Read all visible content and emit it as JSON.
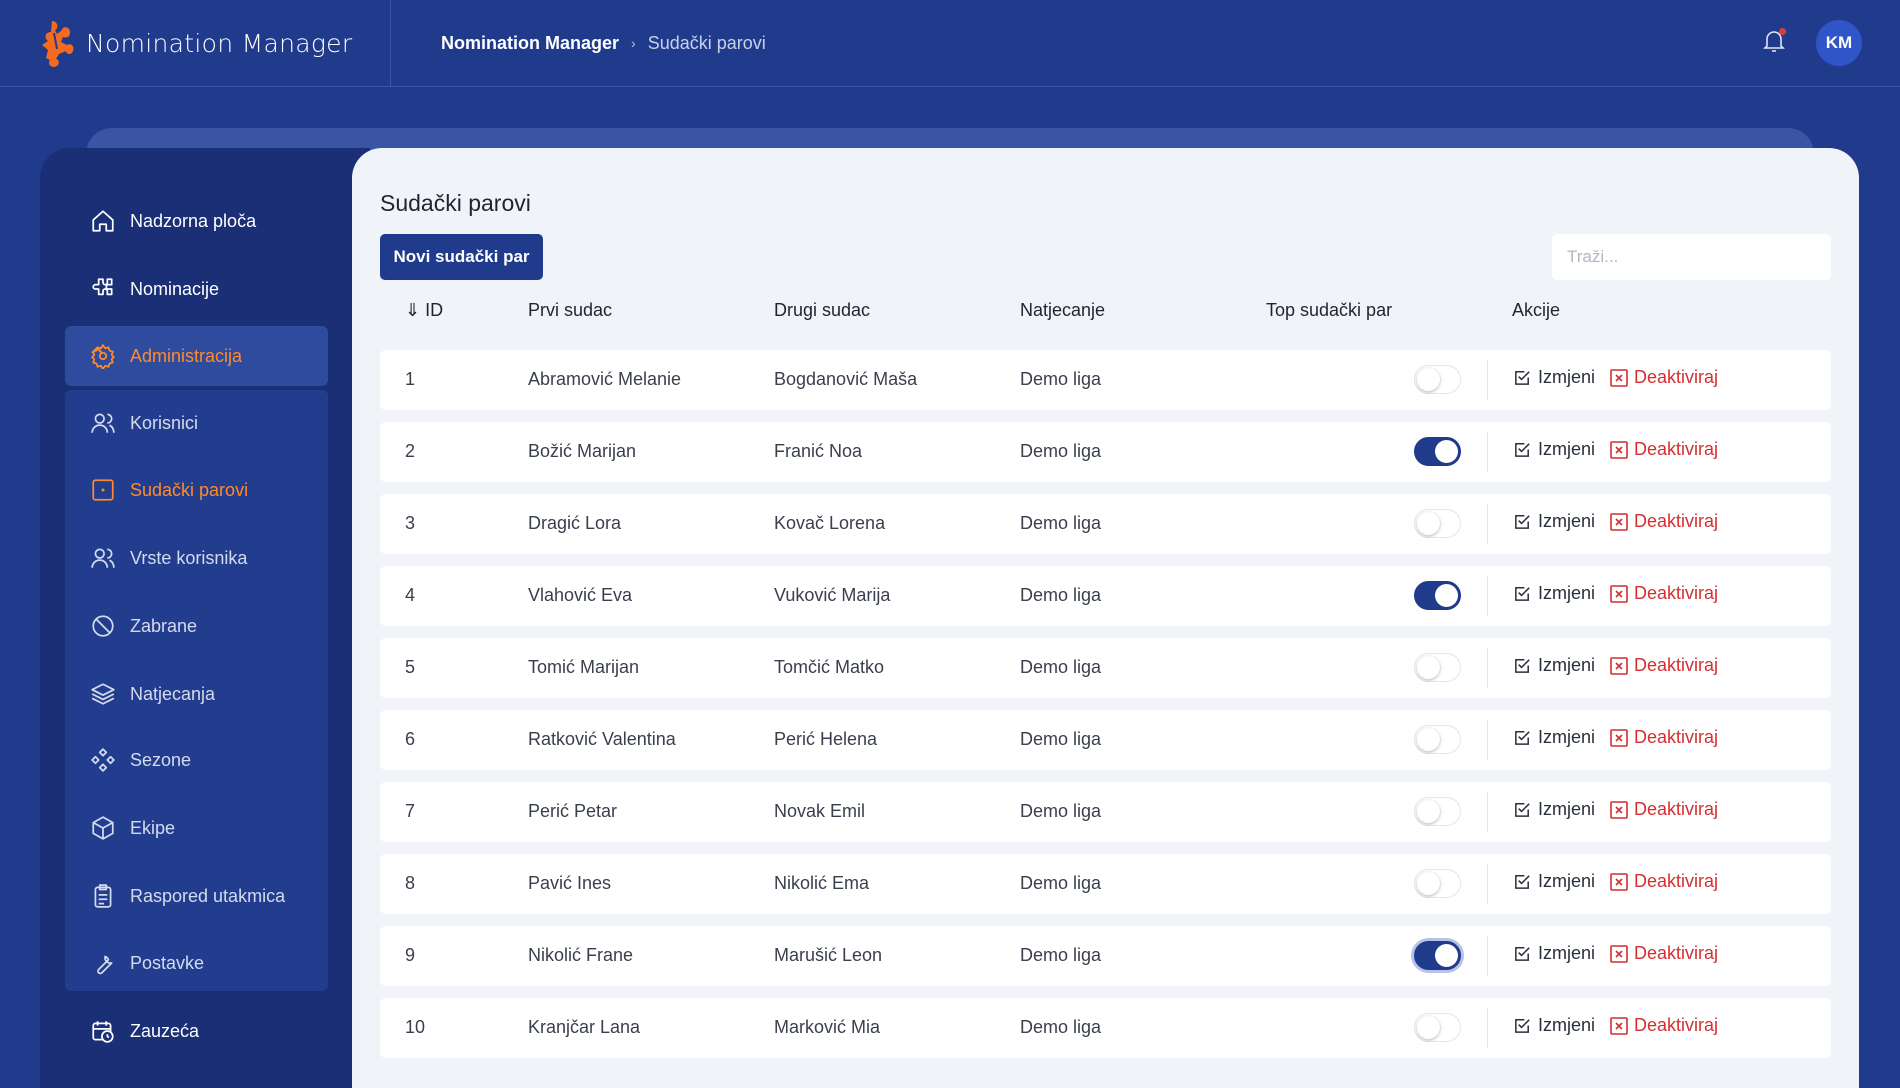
{
  "app": {
    "name": "Nomination Manager"
  },
  "breadcrumb": {
    "root": "Nomination Manager",
    "current": "Sudački parovi"
  },
  "user": {
    "initials": "KM",
    "has_notification": true
  },
  "sidebar": {
    "items": [
      {
        "label": "Nadzorna ploča",
        "icon": "home-icon"
      },
      {
        "label": "Nominacije",
        "icon": "puzzle-icon"
      },
      {
        "label": "Administracija",
        "icon": "gear-icon",
        "expanded": true
      },
      {
        "label": "Korisnici",
        "icon": "users-icon"
      },
      {
        "label": "Sudački parovi",
        "icon": "square-icon",
        "current": true
      },
      {
        "label": "Vrste korisnika",
        "icon": "users-icon"
      },
      {
        "label": "Zabrane",
        "icon": "ban-icon"
      },
      {
        "label": "Natjecanja",
        "icon": "layers-icon"
      },
      {
        "label": "Sezone",
        "icon": "diamonds-icon"
      },
      {
        "label": "Ekipe",
        "icon": "box-icon"
      },
      {
        "label": "Raspored utakmica",
        "icon": "clipboard-icon"
      },
      {
        "label": "Postavke",
        "icon": "wrench-icon"
      },
      {
        "label": "Zauzeća",
        "icon": "calendar-clock-icon"
      }
    ]
  },
  "main": {
    "title": "Sudački parovi",
    "new_button": "Novi sudački par",
    "search_placeholder": "Traži...",
    "columns": [
      "⇓ ID",
      "Prvi sudac",
      "Drugi sudac",
      "Natjecanje",
      "Top sudački par",
      "Akcije"
    ],
    "edit_label": "Izmjeni",
    "deactivate_label": "Deaktiviraj",
    "rows": [
      {
        "id": "1",
        "first": "Abramović Melanie",
        "second": "Bogdanović Maša",
        "comp": "Demo liga",
        "top": false
      },
      {
        "id": "2",
        "first": "Božić Marijan",
        "second": "Franić Noa",
        "comp": "Demo liga",
        "top": true
      },
      {
        "id": "3",
        "first": "Dragić Lora",
        "second": "Kovač Lorena",
        "comp": "Demo liga",
        "top": false
      },
      {
        "id": "4",
        "first": "Vlahović Eva",
        "second": "Vuković Marija",
        "comp": "Demo liga",
        "top": true
      },
      {
        "id": "5",
        "first": "Tomić Marijan",
        "second": "Tomčić Matko",
        "comp": "Demo liga",
        "top": false
      },
      {
        "id": "6",
        "first": "Ratković Valentina",
        "second": "Perić Helena",
        "comp": "Demo liga",
        "top": false
      },
      {
        "id": "7",
        "first": "Perić Petar",
        "second": "Novak Emil",
        "comp": "Demo liga",
        "top": false
      },
      {
        "id": "8",
        "first": "Pavić Ines",
        "second": "Nikolić Ema",
        "comp": "Demo liga",
        "top": false
      },
      {
        "id": "9",
        "first": "Nikolić Frane",
        "second": "Marušić Leon",
        "comp": "Demo liga",
        "top": true
      },
      {
        "id": "10",
        "first": "Kranjčar Lana",
        "second": "Marković Mia",
        "comp": "Demo liga",
        "top": false
      }
    ]
  },
  "colors": {
    "brand": "#213b8c",
    "accent": "#ff8a2a",
    "danger": "#d32f2f"
  }
}
